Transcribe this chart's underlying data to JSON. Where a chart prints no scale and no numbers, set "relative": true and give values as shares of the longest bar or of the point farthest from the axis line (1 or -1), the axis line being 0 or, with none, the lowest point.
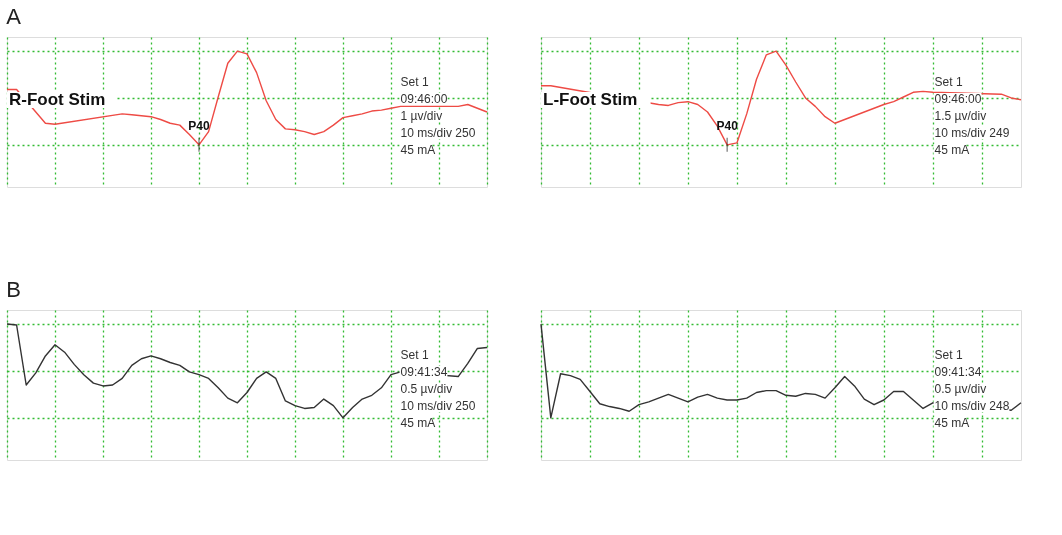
{
  "chart_data": [
    {
      "type": "line",
      "title": "A",
      "relative": true,
      "grid": true,
      "marker": "none",
      "line_style": "solid",
      "categories": [
        null,
        null,
        null,
        null,
        null,
        null,
        null,
        null,
        null,
        null,
        null,
        null,
        null,
        null,
        null,
        null,
        null,
        null,
        null,
        null,
        null,
        null,
        null,
        null,
        null,
        null,
        null,
        null,
        null,
        null,
        null,
        null,
        null,
        null,
        null,
        null,
        null,
        null,
        null,
        null,
        null,
        null,
        null,
        null,
        null,
        null,
        null,
        null,
        null,
        null,
        null
      ],
      "series": [
        {
          "name": "R-Foot Stim",
          "color": "#ee4b45",
          "values": [
            0.59,
            0.59,
            null,
            null,
            0.23,
            0.22,
            null,
            null,
            null,
            null,
            null,
            null,
            0.33,
            0.32,
            0.31,
            0.3,
            0.27,
            0.23,
            0.21,
            0.11,
            0,
            0.14,
            0.51,
            0.87,
            1,
            0.97,
            0.77,
            0.47,
            0.27,
            0.17,
            0.16,
            0.14,
            0.11,
            0.14,
            0.21,
            0.29,
            0.31,
            0.33,
            0.36,
            0.37,
            0.39,
            0.41,
            null,
            null,
            null,
            null,
            null,
            0.41,
            0.43,
            0.39,
            0.35
          ]
        }
      ],
      "annotations": [
        "P40",
        "Set 1",
        "09:46:00",
        "1 µv/div",
        "10 ms/div 250",
        "45 mA"
      ]
    },
    {
      "type": "line",
      "relative": true,
      "grid": true,
      "marker": "none",
      "line_style": "solid",
      "categories": [
        null,
        null,
        null,
        null,
        null,
        null,
        null,
        null,
        null,
        null,
        null,
        null,
        null,
        null,
        null,
        null,
        null,
        null,
        null,
        null,
        null,
        null,
        null,
        null,
        null,
        null,
        null,
        null,
        null,
        null,
        null,
        null,
        null,
        null,
        null,
        null,
        null,
        null,
        null,
        null,
        null,
        null,
        null,
        null,
        null,
        null,
        null,
        null,
        null,
        null
      ],
      "series": [
        {
          "name": "L-Foot Stim",
          "color": "#ee4b45",
          "values": [
            0.63,
            0.63,
            null,
            null,
            null,
            null,
            null,
            null,
            null,
            null,
            null,
            null,
            0.43,
            0.42,
            0.45,
            0.46,
            0.43,
            0.35,
            0.2,
            0,
            0.02,
            0.33,
            0.7,
            0.96,
            1,
            0.85,
            0.67,
            0.5,
            0.41,
            0.3,
            0.23,
            0.27,
            0.31,
            0.35,
            0.39,
            0.43,
            0.46,
            0.51,
            0.56,
            0.57,
            0.56,
            null,
            null,
            null,
            null,
            null,
            null,
            0.54,
            0.5,
            0.48
          ]
        }
      ],
      "annotations": [
        "P40",
        "Set 1",
        "09:46:00",
        "1.5 µv/div",
        "10 ms/div 249",
        "45 mA"
      ]
    },
    {
      "type": "line",
      "title": "B",
      "relative": true,
      "grid": true,
      "marker": "none",
      "line_style": "solid",
      "categories": [
        null,
        null,
        null,
        null,
        null,
        null,
        null,
        null,
        null,
        null,
        null,
        null,
        null,
        null,
        null,
        null,
        null,
        null,
        null,
        null,
        null,
        null,
        null,
        null,
        null,
        null,
        null,
        null,
        null,
        null,
        null,
        null,
        null,
        null,
        null,
        null,
        null,
        null,
        null,
        null,
        null,
        null,
        null,
        null,
        null,
        null,
        null,
        null,
        null,
        null,
        null
      ],
      "series": [
        {
          "color": "#333333",
          "values": [
            1,
            0.99,
            0.35,
            0.48,
            0.66,
            0.78,
            0.7,
            0.57,
            0.46,
            0.37,
            0.34,
            0.35,
            0.42,
            0.56,
            0.63,
            0.66,
            0.63,
            0.59,
            0.56,
            0.49,
            0.46,
            0.42,
            0.32,
            0.21,
            0.16,
            0.27,
            0.42,
            0.49,
            0.42,
            0.18,
            0.13,
            0.1,
            0.11,
            0.2,
            0.13,
            0,
            0.11,
            0.2,
            0.24,
            0.32,
            0.46,
            0.49,
            null,
            null,
            null,
            null,
            null,
            0.44,
            0.58,
            0.74,
            0.75
          ]
        }
      ],
      "annotations": [
        "Set 1",
        "09:41:34",
        "0.5 µv/div",
        "10 ms/div 250",
        "45 mA"
      ]
    },
    {
      "type": "line",
      "relative": true,
      "grid": true,
      "marker": "none",
      "line_style": "solid",
      "categories": [
        null,
        null,
        null,
        null,
        null,
        null,
        null,
        null,
        null,
        null,
        null,
        null,
        null,
        null,
        null,
        null,
        null,
        null,
        null,
        null,
        null,
        null,
        null,
        null,
        null,
        null,
        null,
        null,
        null,
        null,
        null,
        null,
        null,
        null,
        null,
        null,
        null,
        null,
        null,
        null,
        null,
        null,
        null,
        null,
        null,
        null,
        null,
        null,
        null,
        null
      ],
      "series": [
        {
          "color": "#333333",
          "values": [
            1,
            0,
            0.47,
            0.45,
            0.41,
            0.28,
            0.15,
            0.12,
            0.1,
            0.07,
            0.14,
            0.17,
            0.21,
            0.25,
            0.21,
            0.17,
            0.22,
            0.25,
            0.21,
            0.19,
            0.19,
            0.21,
            0.27,
            0.29,
            0.29,
            0.24,
            0.23,
            0.26,
            0.25,
            0.21,
            0.32,
            0.44,
            0.34,
            0.2,
            0.14,
            0.19,
            0.28,
            0.28,
            0.19,
            0.1,
            0.16,
            null,
            null,
            null,
            null,
            null,
            null,
            null,
            0.08,
            0.16
          ]
        }
      ],
      "annotations": [
        "Set 1",
        "09:41:34",
        "0.5 µv/div",
        "10 ms/div 248",
        "45 mA"
      ]
    }
  ]
}
